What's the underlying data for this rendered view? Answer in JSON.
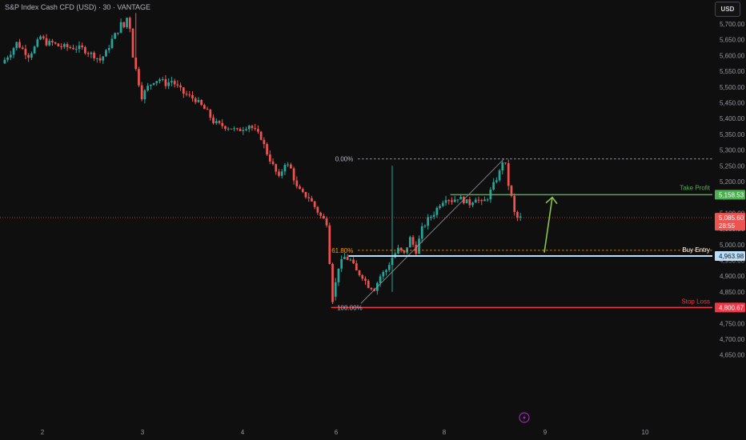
{
  "chart_header": {
    "title": "S&P Index Cash CFD (USD) · 30 · VANTAGE",
    "currency_button": "USD"
  },
  "colors": {
    "background": "#0f0f0f",
    "up": "#26a69a",
    "down": "#ef5350",
    "take_profit": "#4caf50",
    "buy_entry": "#bbdefb",
    "stop_loss": "#f23645",
    "fib_618": "#ff9800",
    "arrow": "#8bc34a"
  },
  "chart_data": {
    "type": "candlestick",
    "title": "S&P Index Cash CFD (USD) · 30 · VANTAGE",
    "y_ticks": [
      5700,
      5650,
      5600,
      5550,
      5500,
      5450,
      5400,
      5350,
      5300,
      5250,
      5200,
      5150,
      5100,
      5050,
      5000,
      4950,
      4900,
      4850,
      4800,
      4750,
      4700,
      4650
    ],
    "y_tick_labels": [
      "5,700.00",
      "5,650.00",
      "5,600.00",
      "5,550.00",
      "5,500.00",
      "5,450.00",
      "5,400.00",
      "5,350.00",
      "5,300.00",
      "5,250.00",
      "5,200.00",
      "5,150.00",
      "5,100.00",
      "5,050.00",
      "5,000.00",
      "4,950.00",
      "4,900.00",
      "4,850.00",
      "4,800.00",
      "4,750.00",
      "4,700.00",
      "4,650.00"
    ],
    "ylim": [
      4623,
      5741
    ],
    "x_ticks": [
      "2",
      "3",
      "4",
      "6",
      "8",
      "9",
      "10"
    ],
    "price_path": [
      [
        0,
        5575
      ],
      [
        3,
        5610
      ],
      [
        5,
        5640
      ],
      [
        7,
        5620
      ],
      [
        9,
        5600
      ],
      [
        11,
        5625
      ],
      [
        13,
        5660
      ],
      [
        15,
        5640
      ],
      [
        17,
        5640
      ],
      [
        19,
        5630
      ],
      [
        21,
        5628
      ],
      [
        23,
        5625
      ],
      [
        25,
        5625
      ],
      [
        27,
        5622
      ],
      [
        29,
        5610
      ],
      [
        31,
        5600
      ],
      [
        33,
        5585
      ],
      [
        35,
        5610
      ],
      [
        37,
        5650
      ],
      [
        39,
        5680
      ],
      [
        40,
        5700
      ],
      [
        41,
        5690
      ],
      [
        42,
        5720
      ],
      [
        43,
        5690
      ],
      [
        44,
        5600
      ],
      [
        45,
        5555
      ],
      [
        47,
        5470
      ],
      [
        49,
        5500
      ],
      [
        51,
        5520
      ],
      [
        53,
        5525
      ],
      [
        55,
        5510
      ],
      [
        57,
        5520
      ],
      [
        59,
        5500
      ],
      [
        61,
        5480
      ],
      [
        63,
        5470
      ],
      [
        65,
        5460
      ],
      [
        67,
        5440
      ],
      [
        69,
        5420
      ],
      [
        71,
        5390
      ],
      [
        73,
        5380
      ],
      [
        75,
        5375
      ],
      [
        77,
        5370
      ],
      [
        79,
        5360
      ],
      [
        81,
        5370
      ],
      [
        83,
        5380
      ],
      [
        85,
        5360
      ],
      [
        87,
        5340
      ],
      [
        89,
        5290
      ],
      [
        91,
        5250
      ],
      [
        93,
        5210
      ],
      [
        95,
        5260
      ],
      [
        97,
        5240
      ],
      [
        99,
        5180
      ],
      [
        101,
        5160
      ],
      [
        103,
        5150
      ],
      [
        105,
        5120
      ],
      [
        107,
        5090
      ],
      [
        109,
        5070
      ],
      [
        111,
        4825
      ],
      [
        113,
        4930
      ],
      [
        115,
        4960
      ],
      [
        117,
        4950
      ],
      [
        119,
        4915
      ],
      [
        121,
        4900
      ],
      [
        123,
        4870
      ],
      [
        125,
        4860
      ],
      [
        127,
        4900
      ],
      [
        129,
        4920
      ],
      [
        131,
        4960
      ],
      [
        133,
        4985
      ],
      [
        135,
        4970
      ],
      [
        137,
        5020
      ],
      [
        139,
        4980
      ],
      [
        141,
        5050
      ],
      [
        143,
        5080
      ],
      [
        145,
        5100
      ],
      [
        147,
        5130
      ],
      [
        149,
        5150
      ],
      [
        151,
        5140
      ],
      [
        153,
        5150
      ],
      [
        155,
        5140
      ],
      [
        157,
        5130
      ],
      [
        159,
        5150
      ],
      [
        161,
        5130
      ],
      [
        163,
        5150
      ],
      [
        165,
        5190
      ],
      [
        167,
        5230
      ],
      [
        168,
        5265
      ],
      [
        169,
        5250
      ],
      [
        170,
        5190
      ],
      [
        171,
        5150
      ],
      [
        172,
        5100
      ],
      [
        173,
        5085
      ]
    ],
    "trade_levels": {
      "take_profit": {
        "label": "Take Profit",
        "price": 5158.53,
        "price_label": "5,158.53"
      },
      "buy_entry": {
        "label": "Buy Entry",
        "price": 4963.98,
        "price_label": "4,963.98"
      },
      "stop_loss": {
        "label": "Stop Loss",
        "price": 4800.67,
        "price_label": "4,800.67"
      },
      "last_price": {
        "price": 5085.6,
        "price_label": "5,085.60",
        "countdown": "28:55"
      }
    },
    "fibonacci": {
      "high": 5272,
      "low": 4800.67,
      "levels": [
        {
          "ratio": 0.0,
          "label": "0.00%",
          "price": 5272
        },
        {
          "ratio": 0.618,
          "label": "61.80%",
          "price": 4982
        },
        {
          "ratio": 1.0,
          "label": "100.00%",
          "price": 4800.67
        }
      ]
    },
    "grid": false,
    "legend": "none"
  },
  "icons": {
    "lightning": "lightning-icon"
  }
}
